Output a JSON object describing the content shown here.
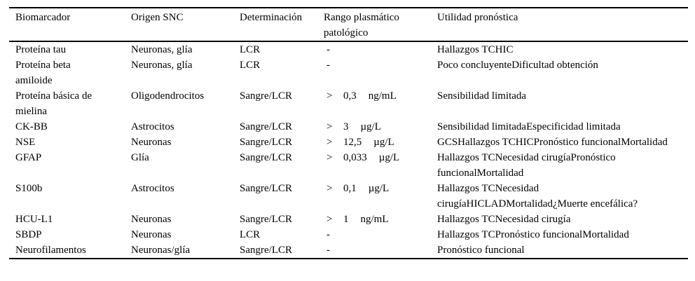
{
  "table": {
    "columns": [
      {
        "label": "Biomarcador"
      },
      {
        "label": "Origen SNC"
      },
      {
        "label": "Determinación"
      },
      {
        "label": "Rango plasmático patológico"
      },
      {
        "label": "Utilidad pronóstica"
      }
    ],
    "rows": [
      {
        "biomarcador": "Proteína tau",
        "origen": "Neuronas, glía",
        "determinacion": "LCR",
        "rango_symbol": "-",
        "rango_value": "",
        "rango_unit": "",
        "utilidad": "Hallazgos TCHIC"
      },
      {
        "biomarcador": "Proteína beta amiloide",
        "origen": "Neuronas, glía",
        "determinacion": "LCR",
        "rango_symbol": "-",
        "rango_value": "",
        "rango_unit": "",
        "utilidad": "Poco concluyenteDificultad obtención"
      },
      {
        "biomarcador": "Proteína básica de mielina",
        "origen": "Oligodendrocitos",
        "determinacion": "Sangre/LCR",
        "rango_symbol": ">",
        "rango_value": "0,3",
        "rango_unit": "ng/mL",
        "utilidad": "Sensibilidad limitada"
      },
      {
        "biomarcador": "CK-BB",
        "origen": "Astrocitos",
        "determinacion": "Sangre/LCR",
        "rango_symbol": ">",
        "rango_value": "3",
        "rango_unit": "µg/L",
        "utilidad": "Sensibilidad limitadaEspecificidad limitada"
      },
      {
        "biomarcador": "NSE",
        "origen": "Neuronas",
        "determinacion": "Sangre/LCR",
        "rango_symbol": ">",
        "rango_value": "12,5",
        "rango_unit": "µg/L",
        "utilidad": "GCSHallazgos TCHICPronóstico funcionalMortalidad"
      },
      {
        "biomarcador": "GFAP",
        "origen": "Glía",
        "determinacion": "Sangre/LCR",
        "rango_symbol": ">",
        "rango_value": "0,033",
        "rango_unit": "µg/L",
        "utilidad": "Hallazgos TCNecesidad cirugíaPronóstico funcionalMortalidad"
      },
      {
        "biomarcador": "S100b",
        "origen": "Astrocitos",
        "determinacion": "Sangre/LCR",
        "rango_symbol": ">",
        "rango_value": "0,1",
        "rango_unit": "µg/L",
        "utilidad": "Hallazgos TCNecesidad cirugíaHICLADMortalidad¿Muerte encefálica?"
      },
      {
        "biomarcador": "HCU-L1",
        "origen": "Neuronas",
        "determinacion": "Sangre/LCR",
        "rango_symbol": ">",
        "rango_value": "1",
        "rango_unit": "ng/mL",
        "utilidad": "Hallazgos TCNecesidad cirugía"
      },
      {
        "biomarcador": "SBDP",
        "origen": "Neuronas",
        "determinacion": "LCR",
        "rango_symbol": "-",
        "rango_value": "",
        "rango_unit": "",
        "utilidad": "Hallazgos TCPronóstico funcionalMortalidad"
      },
      {
        "biomarcador": "Neurofilamentos",
        "origen": "Neuronas/glía",
        "determinacion": "Sangre/LCR",
        "rango_symbol": "-",
        "rango_value": "",
        "rango_unit": "",
        "utilidad": "Pronóstico funcional"
      }
    ]
  }
}
